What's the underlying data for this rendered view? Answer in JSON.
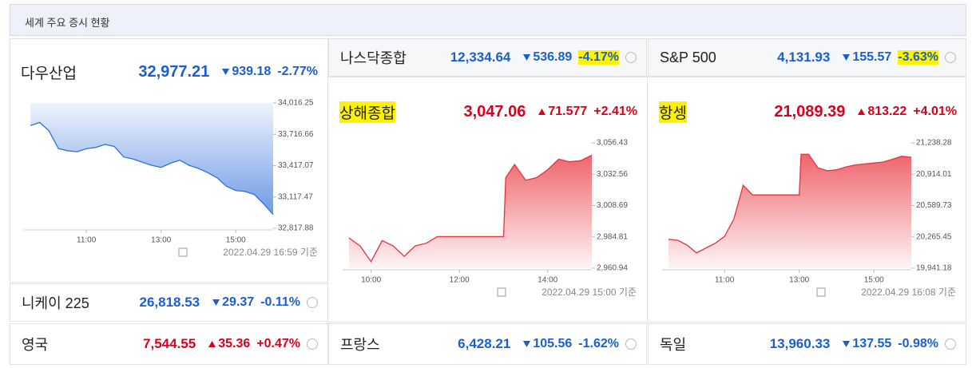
{
  "header": {
    "title": "세계 주요 증시 현황"
  },
  "quotes": [
    {
      "name": "다우산업",
      "value": "32,977.21",
      "change": "939.18",
      "change_percent": "-2.77%",
      "direction": "down",
      "chart": {
        "type": "line",
        "color": "#2f6fdc",
        "x": [
          9.5,
          9.75,
          10,
          10.25,
          10.5,
          10.75,
          11,
          11.25,
          11.5,
          11.75,
          12,
          12.25,
          12.5,
          12.75,
          13,
          13.25,
          13.5,
          13.75,
          14,
          14.25,
          14.5,
          14.75,
          15,
          15.25,
          15.5,
          15.75,
          16
        ],
        "values": [
          33800,
          33830,
          33750,
          33580,
          33560,
          33550,
          33580,
          33590,
          33620,
          33600,
          33500,
          33480,
          33450,
          33420,
          33400,
          33440,
          33470,
          33420,
          33390,
          33350,
          33300,
          33220,
          33180,
          33170,
          33140,
          33050,
          32950
        ],
        "xlim": [
          9.5,
          16
        ],
        "ylim": [
          32817.88,
          34016.25
        ],
        "xticks": [
          {
            "value": 11,
            "label": "11:00"
          },
          {
            "value": 13,
            "label": "13:00"
          },
          {
            "value": 15,
            "label": "15:00"
          }
        ],
        "yticks": [
          {
            "value": 34016.25,
            "label": "34,016.25"
          },
          {
            "value": 33716.66,
            "label": "33,716.66"
          },
          {
            "value": 33417.07,
            "label": "33,417.07"
          },
          {
            "value": 33117.47,
            "label": "33,117.47"
          },
          {
            "value": 32817.88,
            "label": "32,817.88"
          }
        ],
        "note": "2022.04.29 16:59 기준"
      }
    },
    {
      "name": "나스닥종합",
      "value": "12,334.64",
      "change": "536.89",
      "change_percent": "-4.17%",
      "direction": "down",
      "highlight": "change_percent"
    },
    {
      "name": "S&P 500",
      "value": "4,131.93",
      "change": "155.57",
      "change_percent": "-3.63%",
      "direction": "down",
      "highlight": "change_percent"
    },
    {
      "name": "상해종합",
      "value": "3,047.06",
      "change": "71.577",
      "change_percent": "+2.41%",
      "direction": "up",
      "highlight": "name",
      "chart": {
        "type": "line",
        "color": "#e8333c",
        "x": [
          9.5,
          9.75,
          10,
          10.25,
          10.5,
          10.75,
          11,
          11.25,
          11.5,
          13,
          13.05,
          13.25,
          13.5,
          13.75,
          14,
          14.25,
          14.5,
          14.75,
          15
        ],
        "values": [
          2984,
          2978,
          2966,
          2982,
          2978,
          2970,
          2978,
          2980,
          2985,
          2985,
          3030,
          3040,
          3028,
          3030,
          3036,
          3044,
          3042,
          3043,
          3047
        ],
        "xlim": [
          9.5,
          15
        ],
        "ylim": [
          2960.94,
          3056.43
        ],
        "xticks": [
          {
            "value": 10,
            "label": "10:00"
          },
          {
            "value": 12,
            "label": "12:00"
          },
          {
            "value": 14,
            "label": "14:00"
          }
        ],
        "yticks": [
          {
            "value": 3056.43,
            "label": "3,056.43"
          },
          {
            "value": 3032.56,
            "label": "3,032.56"
          },
          {
            "value": 3008.69,
            "label": "3,008.69"
          },
          {
            "value": 2984.81,
            "label": "2,984.81"
          },
          {
            "value": 2960.94,
            "label": "2,960.94"
          }
        ],
        "note": "2022.04.29 15:00 기준"
      }
    },
    {
      "name": "항셍",
      "value": "21,089.39",
      "change": "813.22",
      "change_percent": "+4.01%",
      "direction": "up",
      "highlight": "name",
      "chart": {
        "type": "line",
        "color": "#e8333c",
        "x": [
          9.5,
          9.75,
          10,
          10.25,
          10.5,
          10.75,
          11,
          11.25,
          11.5,
          11.75,
          13,
          13.05,
          13.25,
          13.5,
          13.75,
          14,
          14.25,
          14.5,
          14.75,
          15,
          15.25,
          15.5,
          15.75,
          16
        ],
        "values": [
          20240,
          20230,
          20180,
          20100,
          20150,
          20200,
          20270,
          20450,
          20800,
          20700,
          20700,
          21120,
          21120,
          20980,
          20950,
          20960,
          20990,
          21010,
          21020,
          21030,
          21040,
          21070,
          21100,
          21089
        ],
        "xlim": [
          9.5,
          16
        ],
        "ylim": [
          19941.18,
          21238.28
        ],
        "xticks": [
          {
            "value": 11,
            "label": "11:00"
          },
          {
            "value": 13,
            "label": "13:00"
          },
          {
            "value": 15,
            "label": "15:00"
          }
        ],
        "yticks": [
          {
            "value": 21238.28,
            "label": "21,238.28"
          },
          {
            "value": 20914.01,
            "label": "20,914.01"
          },
          {
            "value": 20589.73,
            "label": "20,589.73"
          },
          {
            "value": 20265.45,
            "label": "20,265.45"
          },
          {
            "value": 19941.18,
            "label": "19,941.18"
          }
        ],
        "note": "2022.04.29 16:08 기준"
      }
    },
    {
      "name": "니케이 225",
      "value": "26,818.53",
      "change": "29.37",
      "change_percent": "-0.11%",
      "direction": "down"
    },
    {
      "name": "영국",
      "value": "7,544.55",
      "change": "35.36",
      "change_percent": "+0.47%",
      "direction": "up"
    },
    {
      "name": "프랑스",
      "value": "6,428.21",
      "change": "105.56",
      "change_percent": "-1.62%",
      "direction": "down"
    },
    {
      "name": "독일",
      "value": "13,960.33",
      "change": "137.55",
      "change_percent": "-0.98%",
      "direction": "down"
    }
  ]
}
